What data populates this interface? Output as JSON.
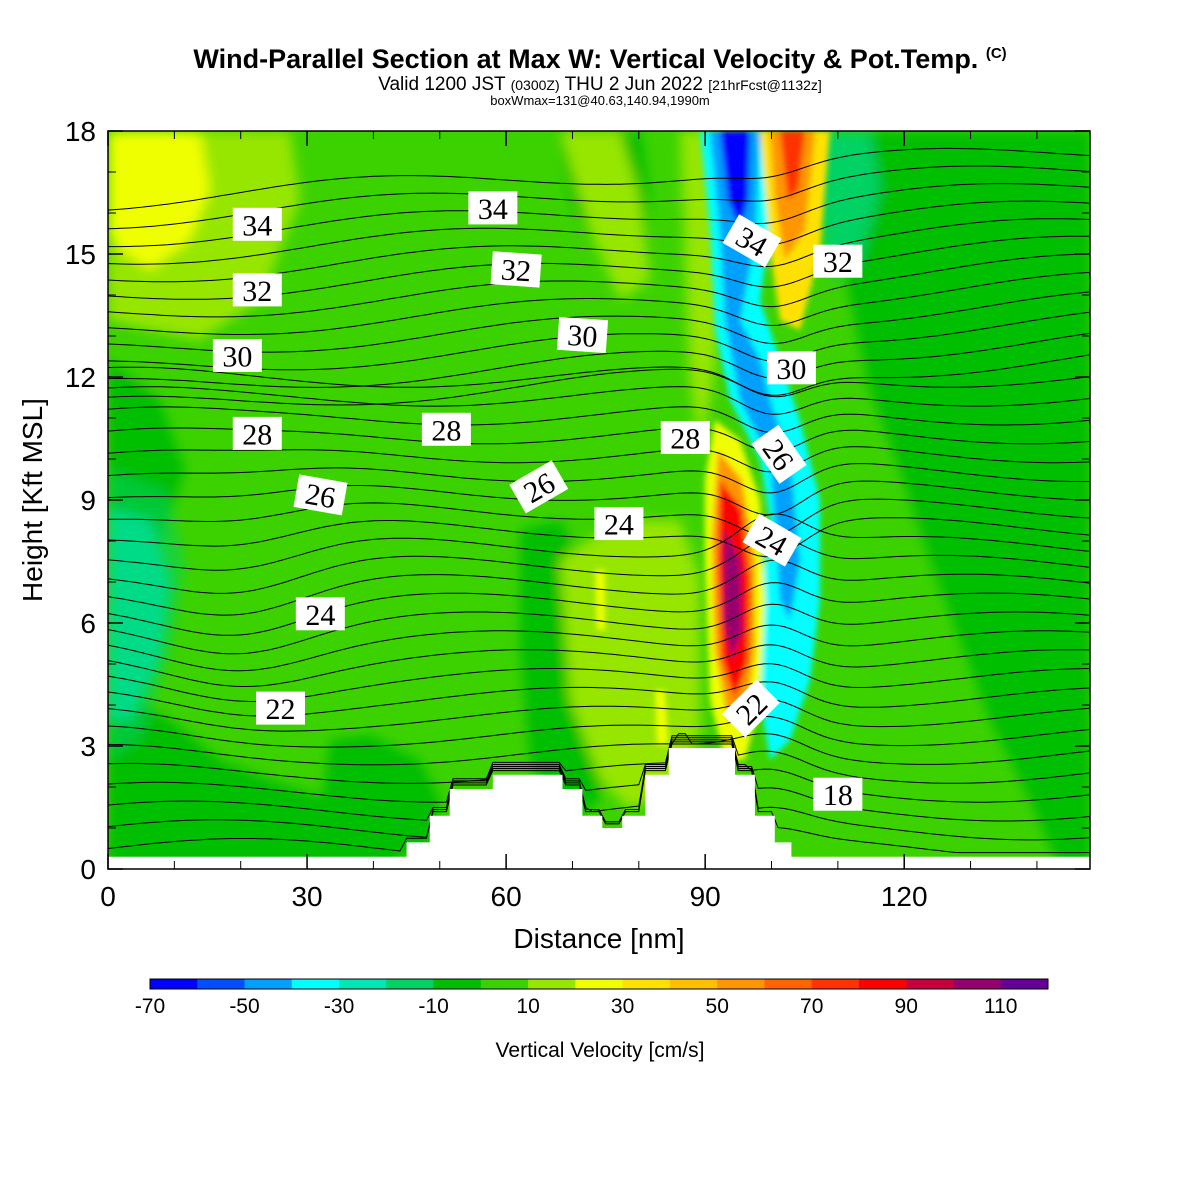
{
  "header": {
    "title": "Wind-Parallel Section at Max W: Vertical Velocity & Pot.Temp.",
    "title_mark": "(C)",
    "valid_line_a": "Valid 1200 JST",
    "valid_line_b": "(0300Z)",
    "valid_line_c": "THU 2 Jun 2022",
    "valid_line_d": "[21hrFcst@1132z]",
    "box_line": "boxWmax=131@40.63,140.94,1990m"
  },
  "chart_data": {
    "type": "heatmap",
    "title": "Wind-Parallel Section at Max W: Vertical Velocity & Pot.Temp.",
    "xlabel": "Distance [nm]",
    "ylabel": "Height [Kft MSL]",
    "xlim": [
      0,
      148
    ],
    "ylim": [
      0,
      18
    ],
    "x_ticks": [
      0,
      30,
      60,
      90,
      120
    ],
    "y_ticks": [
      0,
      3,
      6,
      9,
      12,
      15,
      18
    ],
    "grid": false,
    "colorbar": {
      "title": "Vertical Velocity [cm/s]",
      "placement": "bottom",
      "tick_labels": [
        -70,
        -50,
        -30,
        -10,
        10,
        30,
        50,
        70,
        90,
        110
      ],
      "levels": [
        -70,
        -60,
        -50,
        -40,
        -30,
        -20,
        -10,
        0,
        10,
        20,
        30,
        40,
        50,
        60,
        70,
        80,
        90,
        100,
        110,
        120
      ],
      "colors": [
        "#0000ff",
        "#0050ff",
        "#00a0ff",
        "#00ffff",
        "#00e6b4",
        "#00d264",
        "#00be00",
        "#3cd200",
        "#96e600",
        "#f0ff00",
        "#ffe100",
        "#ffbe00",
        "#ff9600",
        "#ff6400",
        "#ff3200",
        "#ff0000",
        "#c8003c",
        "#96006e",
        "#640096"
      ]
    },
    "theta_labels": [
      {
        "value": "34",
        "x": 22.5,
        "y": 15.7
      },
      {
        "value": "34",
        "x": 58,
        "y": 16.1
      },
      {
        "value": "34",
        "x": 97,
        "y": 15.3
      },
      {
        "value": "32",
        "x": 22.5,
        "y": 14.1
      },
      {
        "value": "32",
        "x": 61.5,
        "y": 14.6
      },
      {
        "value": "32",
        "x": 110,
        "y": 14.8
      },
      {
        "value": "30",
        "x": 19.5,
        "y": 12.5
      },
      {
        "value": "30",
        "x": 71.5,
        "y": 13
      },
      {
        "value": "30",
        "x": 103,
        "y": 12.2
      },
      {
        "value": "28",
        "x": 22.5,
        "y": 10.6
      },
      {
        "value": "28",
        "x": 51,
        "y": 10.7
      },
      {
        "value": "28",
        "x": 87,
        "y": 10.5
      },
      {
        "value": "26",
        "x": 101,
        "y": 10.1
      },
      {
        "value": "26",
        "x": 32,
        "y": 9.1
      },
      {
        "value": "26",
        "x": 65,
        "y": 9.3
      },
      {
        "value": "24",
        "x": 77,
        "y": 8.4
      },
      {
        "value": "24",
        "x": 100,
        "y": 8.0
      },
      {
        "value": "24",
        "x": 32,
        "y": 6.2
      },
      {
        "value": "22",
        "x": 26,
        "y": 3.9
      },
      {
        "value": "22",
        "x": 97,
        "y": 3.9
      },
      {
        "value": "18",
        "x": 110,
        "y": 1.8
      }
    ],
    "terrain": [
      [
        0,
        0.3
      ],
      [
        45,
        0.3
      ],
      [
        45,
        0.65
      ],
      [
        48.5,
        0.65
      ],
      [
        48.5,
        1.3
      ],
      [
        51.5,
        1.3
      ],
      [
        51.5,
        1.95
      ],
      [
        58,
        1.95
      ],
      [
        58,
        2.3
      ],
      [
        68.5,
        2.3
      ],
      [
        68.5,
        1.95
      ],
      [
        71.5,
        1.95
      ],
      [
        71.5,
        1.3
      ],
      [
        74.5,
        1.3
      ],
      [
        74.5,
        1.0
      ],
      [
        77.5,
        1.0
      ],
      [
        77.5,
        1.3
      ],
      [
        81,
        1.3
      ],
      [
        81,
        2.3
      ],
      [
        84.5,
        2.3
      ],
      [
        84.5,
        2.95
      ],
      [
        94.5,
        2.95
      ],
      [
        94.5,
        2.3
      ],
      [
        97.5,
        2.3
      ],
      [
        97.5,
        1.3
      ],
      [
        100.5,
        1.3
      ],
      [
        100.5,
        0.65
      ],
      [
        103,
        0.65
      ],
      [
        103,
        0.3
      ],
      [
        148,
        0.3
      ]
    ]
  }
}
